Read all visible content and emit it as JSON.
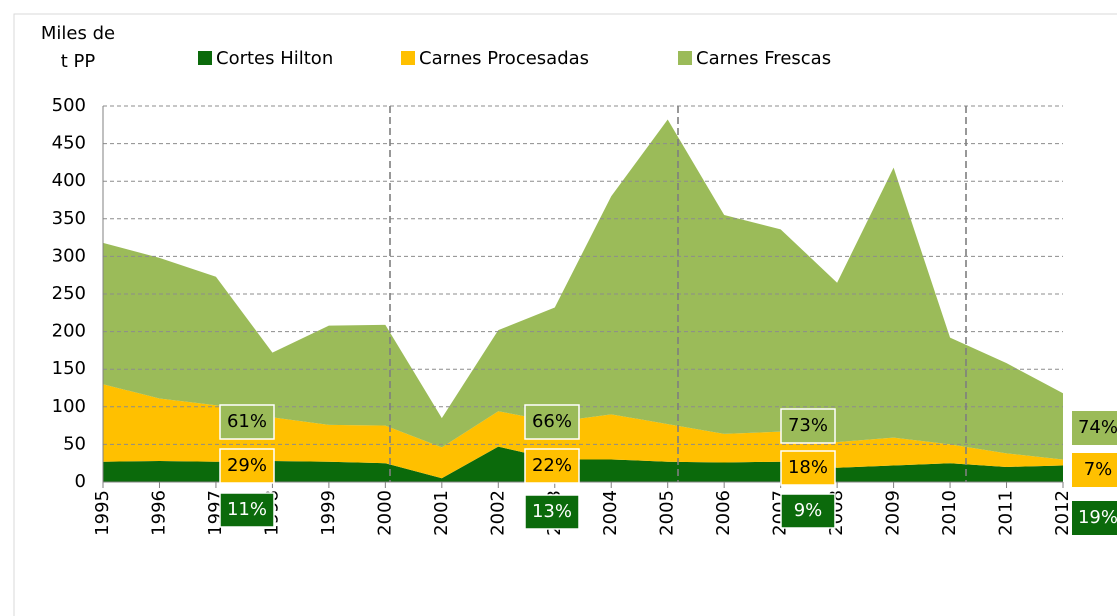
{
  "chart_data": {
    "type": "stacked_area",
    "y_label": [
      "Miles de",
      "t PP"
    ],
    "categories": [
      "1995",
      "1996",
      "1997",
      "1998",
      "1999",
      "2000",
      "2001",
      "2002",
      "2003",
      "2004",
      "2005",
      "2006",
      "2007",
      "2008",
      "2009",
      "2010",
      "2011",
      "2012"
    ],
    "series": [
      {
        "name": "Cortes Hilton",
        "color": "#0b6a0b",
        "values": [
          27,
          28,
          27,
          28,
          27,
          25,
          5,
          47,
          30,
          30,
          27,
          26,
          27,
          19,
          22,
          25,
          20,
          22
        ]
      },
      {
        "name": "Carnes Procesadas",
        "color": "#ffc000",
        "values": [
          103,
          83,
          75,
          58,
          49,
          50,
          41,
          47,
          50,
          60,
          50,
          38,
          40,
          34,
          37,
          25,
          18,
          8
        ]
      },
      {
        "name": "Carnes Frescas",
        "color": "#9bbb59",
        "values": [
          188,
          187,
          171,
          86,
          132,
          134,
          39,
          108,
          152,
          290,
          405,
          291,
          269,
          212,
          359,
          142,
          120,
          88
        ]
      }
    ],
    "ylim": [
      0,
      500
    ],
    "yticks": [
      0,
      50,
      100,
      150,
      200,
      250,
      300,
      350,
      400,
      450,
      500
    ],
    "grid": true,
    "annotations": [
      [
        "61%",
        "29%",
        "11%"
      ],
      [
        "66%",
        "22%",
        "13%"
      ],
      [
        "73%",
        "18%",
        "9%"
      ],
      [
        "74%",
        "7%",
        "19%"
      ]
    ]
  }
}
